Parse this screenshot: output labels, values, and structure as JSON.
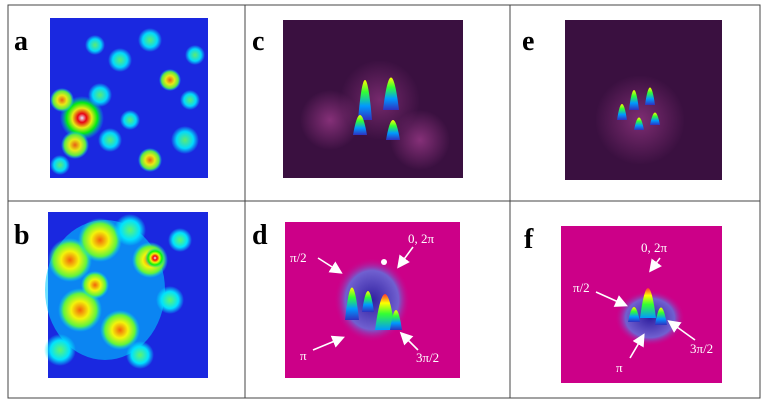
{
  "panels": [
    {
      "label": "a"
    },
    {
      "label": "b"
    },
    {
      "label": "c"
    },
    {
      "label": "d",
      "annotations": [
        "π/2",
        "0, 2π",
        "π",
        "3π/2"
      ]
    },
    {
      "label": "e"
    },
    {
      "label": "f",
      "annotations": [
        "0, 2π",
        "π/2",
        "3π/2",
        "π"
      ]
    }
  ]
}
